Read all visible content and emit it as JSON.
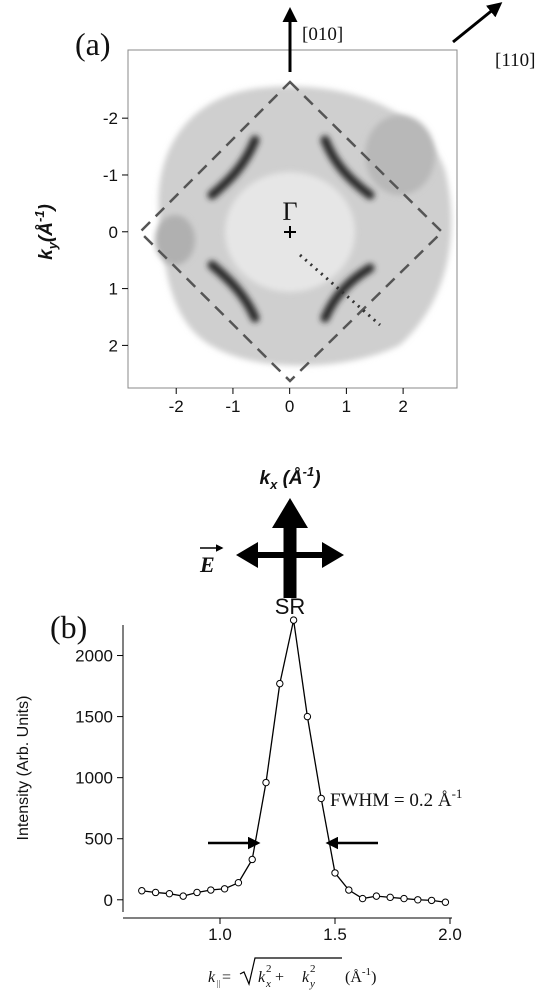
{
  "chart_data": [
    {
      "type": "image",
      "title": "(a)",
      "x_label": [
        "k",
        "x",
        " (Å",
        "-1",
        ")"
      ],
      "y_label": [
        "k",
        "y",
        "(Å",
        "-1",
        ")"
      ],
      "xlim": [
        -2.85,
        2.95
      ],
      "xticks": [
        -2,
        -1,
        0,
        1,
        2
      ],
      "ylim": [
        2.75,
        -3.2
      ],
      "yticks": [
        -2,
        -1,
        0,
        1,
        2
      ],
      "annotations": [
        "[010]",
        "[110]",
        "Γ",
        "SR",
        "E"
      ]
    },
    {
      "type": "line",
      "title": "(b)",
      "x_label": [
        "k",
        "||",
        " = ",
        "k",
        "x",
        "2",
        " + ",
        "k",
        "y",
        "2",
        " (Å",
        "-1",
        ")"
      ],
      "y_label": "Intensity (Arb. Units)",
      "xlim": [
        0.6,
        2.0
      ],
      "xticks": [
        {
          "value": 1.0,
          "label": "1.0"
        },
        {
          "value": 1.5,
          "label": "1.5"
        },
        {
          "value": 2.0,
          "label": "2.0"
        }
      ],
      "ylim": [
        -100,
        2250
      ],
      "yticks": [
        0,
        500,
        1000,
        1500,
        2000
      ],
      "x": [
        0.66,
        0.72,
        0.78,
        0.84,
        0.9,
        0.96,
        1.02,
        1.08,
        1.14,
        1.2,
        1.26,
        1.32,
        1.38,
        1.44,
        1.5,
        1.56,
        1.62,
        1.68,
        1.74,
        1.8,
        1.86,
        1.92,
        1.98
      ],
      "series": [
        {
          "color": "#000000",
          "values": [
            74,
            60,
            50,
            30,
            60,
            80,
            90,
            140,
            330,
            960,
            1770,
            2290,
            1500,
            830,
            220,
            80,
            10,
            30,
            20,
            10,
            0,
            -5,
            -20
          ]
        }
      ],
      "annotations": [
        "FWHM = 0.2 Å",
        "-1"
      ]
    }
  ]
}
